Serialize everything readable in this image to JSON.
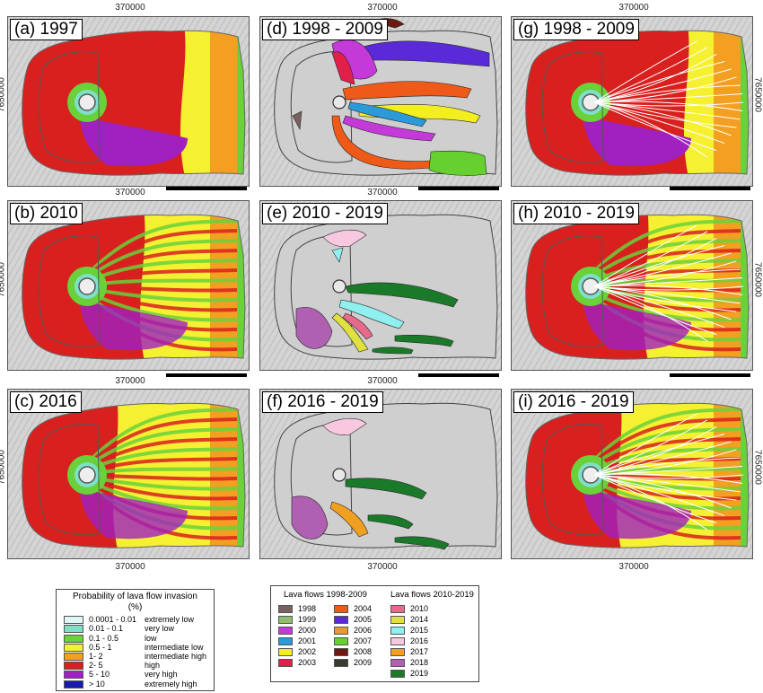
{
  "panels": [
    {
      "id": "a",
      "label": "(a) 1997",
      "kind": "prob",
      "level": "high"
    },
    {
      "id": "d",
      "label": "(d) 1998 - 2009",
      "kind": "flows",
      "set": "1998"
    },
    {
      "id": "g",
      "label": "(g) 1998 - 2009",
      "kind": "prob-outline",
      "level": "high"
    },
    {
      "id": "b",
      "label": "(b) 2010",
      "kind": "prob",
      "level": "mid"
    },
    {
      "id": "e",
      "label": "(e) 2010 - 2019",
      "kind": "flows",
      "set": "2010"
    },
    {
      "id": "h",
      "label": "(h) 2010 - 2019",
      "kind": "prob-outline",
      "level": "mid"
    },
    {
      "id": "c",
      "label": "(c) 2016",
      "kind": "prob",
      "level": "low"
    },
    {
      "id": "f",
      "label": "(f) 2016 - 2019",
      "kind": "flows",
      "set": "2016"
    },
    {
      "id": "i",
      "label": "(i) 2016 - 2019",
      "kind": "prob-outline",
      "level": "low"
    }
  ],
  "coords": {
    "easting": "370000",
    "northing": "7650000"
  },
  "probability_legend": {
    "title_line1": "Probability of lava flow invasion",
    "title_line2": "(%)",
    "rows": [
      {
        "range": "0.0001 - 0.01",
        "class": "extremely low",
        "color": "#dff7f7"
      },
      {
        "range": "0.01 - 0.1",
        "class": "very low",
        "color": "#7fe0c8"
      },
      {
        "range": "0.1 - 0.5",
        "class": "low",
        "color": "#6ad13a"
      },
      {
        "range": "0.5 - 1",
        "class": "intermediate low",
        "color": "#f5f032"
      },
      {
        "range": "1- 2",
        "class": "intermediate high",
        "color": "#f3a022"
      },
      {
        "range": "2- 5",
        "class": "high",
        "color": "#d8201e"
      },
      {
        "range": "5 - 10",
        "class": "very high",
        "color": "#a020c0"
      },
      {
        "range": "> 10",
        "class": "extremely high",
        "color": "#1a1ab0"
      }
    ]
  },
  "flows_legend": {
    "title_left": "Lava flows 1998-2009",
    "title_right": "Lava flows 2010-2019",
    "col1": [
      {
        "year": "1998",
        "color": "#7a6060"
      },
      {
        "year": "1999",
        "color": "#8fbf6a"
      },
      {
        "year": "2000",
        "color": "#c43ad8"
      },
      {
        "year": "2001",
        "color": "#2a9ad8"
      },
      {
        "year": "2002",
        "color": "#f3ee20"
      },
      {
        "year": "2003",
        "color": "#e0204a"
      }
    ],
    "col2": [
      {
        "year": "2004",
        "color": "#f05a18"
      },
      {
        "year": "2005",
        "color": "#5a2ad8"
      },
      {
        "year": "2006",
        "color": "#e89a30"
      },
      {
        "year": "2007",
        "color": "#66d030"
      },
      {
        "year": "2008",
        "color": "#6a1a10"
      },
      {
        "year": "2009",
        "color": "#3a3a30"
      }
    ],
    "col3": [
      {
        "year": "2010",
        "color": "#e86a8a"
      },
      {
        "year": "2014",
        "color": "#e0e040"
      },
      {
        "year": "2015",
        "color": "#90f0f0"
      },
      {
        "year": "2016",
        "color": "#f8c8e0"
      },
      {
        "year": "2017",
        "color": "#f0a020"
      },
      {
        "year": "2018",
        "color": "#b060b0"
      },
      {
        "year": "2019",
        "color": "#1a7a2a"
      }
    ]
  }
}
